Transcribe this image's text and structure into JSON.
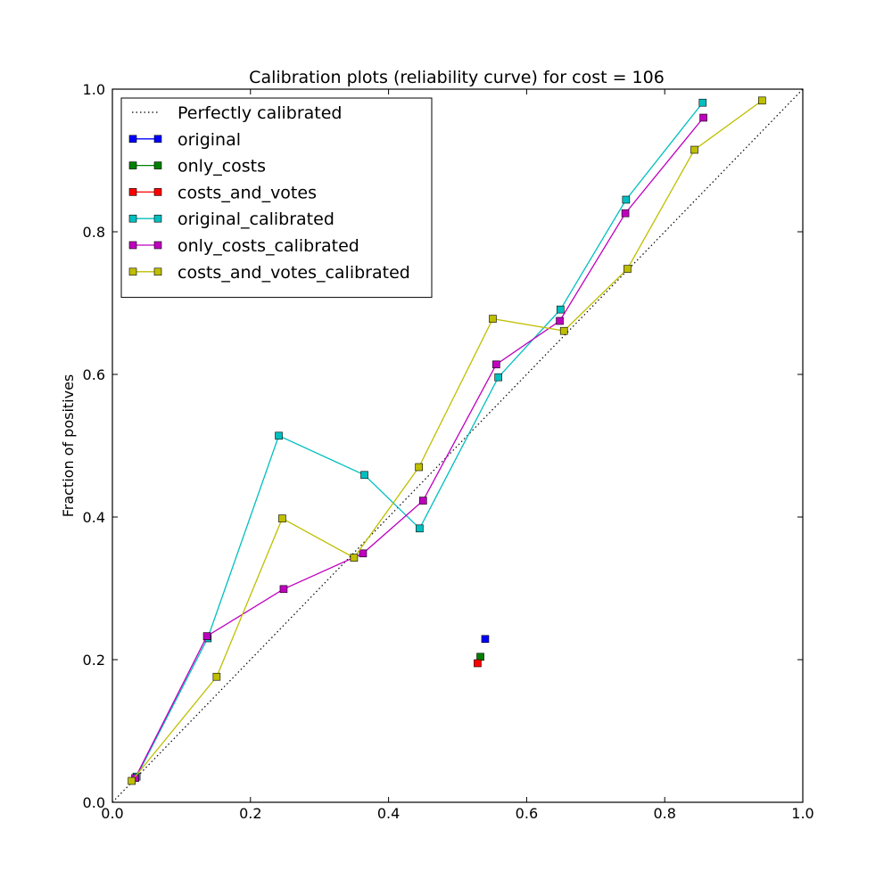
{
  "chart_data": {
    "type": "line",
    "title": "Calibration plots  (reliability curve) for cost = 106",
    "xlabel": "",
    "ylabel": "Fraction of positives",
    "xlim": [
      0.0,
      1.0
    ],
    "ylim": [
      0.0,
      1.0
    ],
    "x_ticks": [
      "0.0",
      "0.2",
      "0.4",
      "0.6",
      "0.8",
      "1.0"
    ],
    "y_ticks": [
      "0.0",
      "0.2",
      "0.4",
      "0.6",
      "0.8",
      "1.0"
    ],
    "grid": false,
    "legend_position": "upper-left",
    "reference_line": {
      "name": "Perfectly calibrated",
      "x": [
        0.0,
        1.0
      ],
      "y": [
        0.0,
        1.0
      ],
      "color": "#000000",
      "style": "dotted"
    },
    "series": [
      {
        "name": "original",
        "color": "#0000ff",
        "x": [
          0.54
        ],
        "y": [
          0.229
        ]
      },
      {
        "name": "only_costs",
        "color": "#008000",
        "x": [
          0.533
        ],
        "y": [
          0.204
        ]
      },
      {
        "name": "costs_and_votes",
        "color": "#ff0000",
        "x": [
          0.529
        ],
        "y": [
          0.195
        ]
      },
      {
        "name": "original_calibrated",
        "color": "#00bfbf",
        "x": [
          0.035,
          0.138,
          0.241,
          0.365,
          0.445,
          0.559,
          0.649,
          0.744,
          0.855
        ],
        "y": [
          0.036,
          0.23,
          0.514,
          0.459,
          0.384,
          0.596,
          0.691,
          0.845,
          0.981
        ]
      },
      {
        "name": "only_costs_calibrated",
        "color": "#bf00bf",
        "x": [
          0.033,
          0.137,
          0.248,
          0.363,
          0.45,
          0.556,
          0.648,
          0.743,
          0.856
        ],
        "y": [
          0.034,
          0.233,
          0.299,
          0.349,
          0.423,
          0.614,
          0.675,
          0.826,
          0.96
        ]
      },
      {
        "name": "costs_and_votes_calibrated",
        "color": "#bfbf00",
        "x": [
          0.028,
          0.151,
          0.246,
          0.35,
          0.444,
          0.551,
          0.654,
          0.746,
          0.843,
          0.941
        ],
        "y": [
          0.03,
          0.176,
          0.398,
          0.343,
          0.47,
          0.678,
          0.661,
          0.748,
          0.915,
          0.984
        ]
      }
    ]
  }
}
